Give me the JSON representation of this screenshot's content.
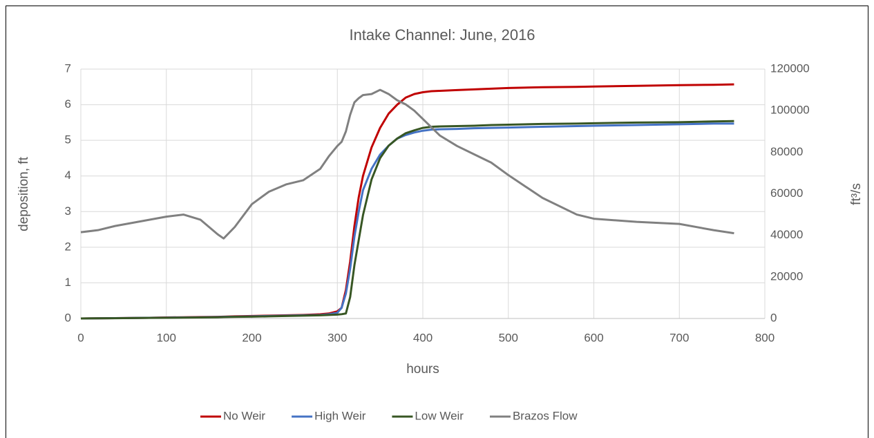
{
  "chart_data": {
    "type": "line",
    "title": "Intake Channel: June, 2016",
    "xlabel": "hours",
    "ylabel": "deposition, ft",
    "y2label": "ft³/s",
    "x": [
      0,
      20,
      40,
      60,
      80,
      100,
      120,
      140,
      160,
      167,
      180,
      200,
      220,
      240,
      260,
      280,
      290,
      300,
      305,
      310,
      315,
      320,
      325,
      330,
      340,
      350,
      360,
      370,
      380,
      390,
      400,
      410,
      420,
      440,
      460,
      480,
      500,
      540,
      580,
      600,
      650,
      700,
      740,
      764
    ],
    "series": [
      {
        "name": "No Weir",
        "color": "#c00000",
        "values": [
          0,
          0.005,
          0.01,
          0.015,
          0.02,
          0.03,
          0.035,
          0.04,
          0.045,
          0.05,
          0.06,
          0.07,
          0.08,
          0.09,
          0.1,
          0.12,
          0.14,
          0.2,
          0.3,
          0.8,
          1.6,
          2.6,
          3.4,
          4.0,
          4.8,
          5.35,
          5.75,
          6.0,
          6.2,
          6.3,
          6.35,
          6.38,
          6.39,
          6.41,
          6.43,
          6.45,
          6.47,
          6.49,
          6.5,
          6.51,
          6.53,
          6.55,
          6.56,
          6.57
        ]
      },
      {
        "name": "High Weir",
        "color": "#4472c4",
        "values": [
          0,
          0.005,
          0.01,
          0.015,
          0.02,
          0.025,
          0.03,
          0.035,
          0.04,
          0.045,
          0.05,
          0.06,
          0.07,
          0.08,
          0.09,
          0.1,
          0.12,
          0.16,
          0.3,
          0.7,
          1.4,
          2.3,
          3.0,
          3.6,
          4.2,
          4.6,
          4.85,
          5.05,
          5.15,
          5.22,
          5.27,
          5.3,
          5.31,
          5.32,
          5.34,
          5.35,
          5.36,
          5.38,
          5.4,
          5.41,
          5.43,
          5.45,
          5.47,
          5.47
        ]
      },
      {
        "name": "Low Weir",
        "color": "#375623",
        "values": [
          0,
          0.004,
          0.008,
          0.012,
          0.016,
          0.02,
          0.025,
          0.03,
          0.035,
          0.04,
          0.045,
          0.05,
          0.06,
          0.07,
          0.08,
          0.09,
          0.1,
          0.11,
          0.12,
          0.14,
          0.6,
          1.5,
          2.2,
          2.9,
          3.9,
          4.5,
          4.85,
          5.05,
          5.2,
          5.28,
          5.35,
          5.38,
          5.39,
          5.4,
          5.41,
          5.43,
          5.44,
          5.46,
          5.47,
          5.48,
          5.5,
          5.51,
          5.53,
          5.54
        ]
      },
      {
        "name": "Brazos Flow",
        "color": "#808080",
        "axis": "y2",
        "values": [
          41500,
          42500,
          44500,
          46000,
          47500,
          49000,
          50000,
          47500,
          40500,
          38500,
          44000,
          55000,
          61000,
          64500,
          66500,
          72000,
          78000,
          83000,
          85000,
          90000,
          98000,
          104000,
          106000,
          107500,
          108000,
          110000,
          108000,
          105000,
          103000,
          100000,
          96000,
          92000,
          88000,
          83000,
          79000,
          75000,
          69000,
          58000,
          50000,
          48000,
          46500,
          45500,
          42500,
          41000
        ]
      }
    ],
    "xlim": [
      0,
      800
    ],
    "xticks": [
      0,
      100,
      200,
      300,
      400,
      500,
      600,
      700,
      800
    ],
    "ylim": [
      0,
      7
    ],
    "yticks": [
      0,
      1,
      2,
      3,
      4,
      5,
      6,
      7
    ],
    "y2lim": [
      0,
      120000
    ],
    "y2ticks": [
      0,
      20000,
      40000,
      60000,
      80000,
      100000,
      120000
    ],
    "grid": true,
    "legend": "bottom"
  }
}
